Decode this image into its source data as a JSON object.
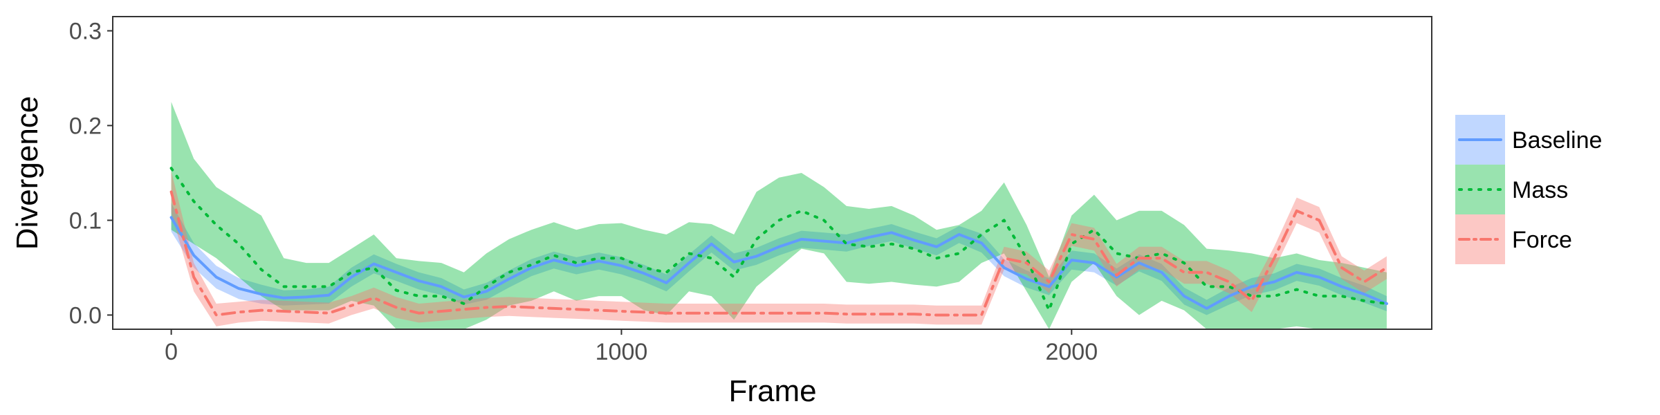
{
  "chart_data": {
    "type": "line",
    "xlabel": "Frame",
    "ylabel": "Divergence",
    "xlim": [
      -130,
      2800
    ],
    "ylim": [
      -0.015,
      0.315
    ],
    "x_ticks": [
      0,
      1000,
      2000
    ],
    "y_ticks": [
      0.0,
      0.1,
      0.2,
      0.3
    ],
    "x_tick_labels": [
      "0",
      "1000",
      "2000"
    ],
    "y_tick_labels": [
      "0.0",
      "0.1",
      "0.2",
      "0.3"
    ],
    "grid": false,
    "legend_position": "right",
    "series": [
      {
        "name": "Baseline",
        "color": "#619cff",
        "line_style": "solid",
        "x": [
          0,
          50,
          100,
          150,
          200,
          250,
          300,
          350,
          400,
          450,
          500,
          550,
          600,
          650,
          700,
          750,
          800,
          850,
          900,
          950,
          1000,
          1050,
          1100,
          1150,
          1200,
          1250,
          1300,
          1350,
          1400,
          1450,
          1500,
          1550,
          1600,
          1650,
          1700,
          1750,
          1800,
          1850,
          1900,
          1950,
          2000,
          2050,
          2100,
          2150,
          2200,
          2250,
          2300,
          2350,
          2400,
          2450,
          2500,
          2550,
          2600,
          2650,
          2700
        ],
        "y": [
          0.103,
          0.063,
          0.04,
          0.028,
          0.022,
          0.018,
          0.019,
          0.021,
          0.04,
          0.054,
          0.045,
          0.036,
          0.03,
          0.019,
          0.025,
          0.038,
          0.05,
          0.058,
          0.052,
          0.057,
          0.052,
          0.044,
          0.034,
          0.055,
          0.075,
          0.056,
          0.062,
          0.072,
          0.08,
          0.078,
          0.076,
          0.082,
          0.087,
          0.079,
          0.072,
          0.085,
          0.076,
          0.05,
          0.038,
          0.03,
          0.058,
          0.055,
          0.04,
          0.055,
          0.045,
          0.02,
          0.007,
          0.02,
          0.03,
          0.035,
          0.045,
          0.04,
          0.03,
          0.022,
          0.012
        ],
        "lower": [
          0.088,
          0.05,
          0.028,
          0.017,
          0.012,
          0.01,
          0.011,
          0.012,
          0.03,
          0.044,
          0.036,
          0.027,
          0.021,
          0.011,
          0.016,
          0.029,
          0.041,
          0.049,
          0.043,
          0.048,
          0.043,
          0.035,
          0.025,
          0.046,
          0.066,
          0.047,
          0.053,
          0.063,
          0.071,
          0.069,
          0.067,
          0.073,
          0.078,
          0.07,
          0.063,
          0.076,
          0.066,
          0.041,
          0.029,
          0.021,
          0.048,
          0.045,
          0.031,
          0.046,
          0.036,
          0.011,
          0.0,
          0.011,
          0.021,
          0.026,
          0.036,
          0.031,
          0.021,
          0.013,
          0.004
        ],
        "upper": [
          0.118,
          0.076,
          0.052,
          0.039,
          0.032,
          0.026,
          0.027,
          0.03,
          0.05,
          0.064,
          0.054,
          0.045,
          0.039,
          0.027,
          0.034,
          0.047,
          0.059,
          0.067,
          0.061,
          0.066,
          0.061,
          0.053,
          0.043,
          0.064,
          0.084,
          0.065,
          0.071,
          0.081,
          0.089,
          0.087,
          0.085,
          0.091,
          0.096,
          0.088,
          0.081,
          0.094,
          0.086,
          0.059,
          0.047,
          0.039,
          0.068,
          0.065,
          0.049,
          0.064,
          0.054,
          0.029,
          0.016,
          0.029,
          0.039,
          0.044,
          0.054,
          0.049,
          0.039,
          0.031,
          0.02
        ]
      },
      {
        "name": "Mass",
        "color": "#00ba38",
        "line_style": "dotted",
        "x": [
          0,
          50,
          100,
          150,
          200,
          250,
          300,
          350,
          400,
          450,
          500,
          550,
          600,
          650,
          700,
          750,
          800,
          850,
          900,
          950,
          1000,
          1050,
          1100,
          1150,
          1200,
          1250,
          1300,
          1350,
          1400,
          1450,
          1500,
          1550,
          1600,
          1650,
          1700,
          1750,
          1800,
          1850,
          1900,
          1950,
          2000,
          2050,
          2100,
          2150,
          2200,
          2250,
          2300,
          2350,
          2400,
          2450,
          2500,
          2550,
          2600,
          2650,
          2700
        ],
        "y": [
          0.155,
          0.12,
          0.095,
          0.075,
          0.048,
          0.03,
          0.03,
          0.03,
          0.045,
          0.05,
          0.026,
          0.02,
          0.02,
          0.012,
          0.03,
          0.045,
          0.053,
          0.063,
          0.055,
          0.06,
          0.06,
          0.05,
          0.045,
          0.065,
          0.06,
          0.04,
          0.08,
          0.1,
          0.11,
          0.1,
          0.075,
          0.072,
          0.075,
          0.07,
          0.06,
          0.065,
          0.085,
          0.1,
          0.06,
          0.005,
          0.075,
          0.09,
          0.065,
          0.06,
          0.065,
          0.055,
          0.03,
          0.03,
          0.02,
          0.02,
          0.027,
          0.02,
          0.02,
          0.015,
          0.012
        ],
        "lower": [
          0.09,
          0.075,
          0.06,
          0.04,
          0.02,
          0.005,
          0.005,
          0.005,
          0.015,
          0.01,
          -0.015,
          -0.02,
          -0.02,
          -0.02,
          -0.005,
          0.01,
          0.015,
          0.025,
          0.015,
          0.02,
          0.02,
          0.005,
          0.0,
          0.025,
          0.02,
          -0.005,
          0.03,
          0.05,
          0.07,
          0.065,
          0.035,
          0.033,
          0.035,
          0.032,
          0.03,
          0.035,
          0.055,
          0.065,
          0.025,
          -0.02,
          0.035,
          0.055,
          0.02,
          0.0,
          0.015,
          0.005,
          -0.02,
          -0.02,
          -0.02,
          -0.015,
          -0.012,
          -0.018,
          -0.02,
          -0.02,
          -0.022
        ],
        "upper": [
          0.225,
          0.165,
          0.135,
          0.12,
          0.105,
          0.06,
          0.055,
          0.055,
          0.07,
          0.085,
          0.06,
          0.057,
          0.055,
          0.045,
          0.065,
          0.08,
          0.09,
          0.098,
          0.09,
          0.096,
          0.097,
          0.09,
          0.085,
          0.098,
          0.096,
          0.085,
          0.13,
          0.145,
          0.15,
          0.135,
          0.115,
          0.112,
          0.115,
          0.105,
          0.09,
          0.095,
          0.11,
          0.14,
          0.095,
          0.04,
          0.105,
          0.127,
          0.1,
          0.11,
          0.11,
          0.095,
          0.07,
          0.068,
          0.065,
          0.06,
          0.065,
          0.058,
          0.055,
          0.05,
          0.045
        ]
      },
      {
        "name": "Force",
        "color": "#f8766d",
        "line_style": "dashdot",
        "x": [
          0,
          50,
          100,
          150,
          200,
          250,
          300,
          350,
          400,
          450,
          500,
          550,
          600,
          650,
          700,
          750,
          800,
          850,
          900,
          950,
          1000,
          1050,
          1100,
          1150,
          1200,
          1250,
          1300,
          1350,
          1400,
          1450,
          1500,
          1550,
          1600,
          1650,
          1700,
          1750,
          1800,
          1850,
          1900,
          1950,
          2000,
          2050,
          2100,
          2150,
          2200,
          2250,
          2300,
          2350,
          2400,
          2450,
          2500,
          2550,
          2600,
          2650,
          2700
        ],
        "y": [
          0.13,
          0.04,
          0.0,
          0.003,
          0.005,
          0.004,
          0.003,
          0.002,
          0.01,
          0.018,
          0.008,
          0.002,
          0.004,
          0.006,
          0.008,
          0.009,
          0.008,
          0.007,
          0.006,
          0.005,
          0.004,
          0.003,
          0.002,
          0.002,
          0.002,
          0.002,
          0.002,
          0.002,
          0.002,
          0.002,
          0.001,
          0.001,
          0.001,
          0.001,
          0.0,
          0.0,
          0.0,
          0.06,
          0.055,
          0.035,
          0.085,
          0.08,
          0.042,
          0.06,
          0.06,
          0.045,
          0.045,
          0.035,
          0.015,
          0.06,
          0.11,
          0.1,
          0.05,
          0.035,
          0.05
        ],
        "lower": [
          0.108,
          0.025,
          -0.012,
          -0.008,
          -0.006,
          -0.007,
          -0.008,
          -0.009,
          0.0,
          0.007,
          -0.003,
          -0.008,
          -0.006,
          -0.004,
          -0.002,
          -0.001,
          -0.002,
          -0.003,
          -0.004,
          -0.005,
          -0.006,
          -0.007,
          -0.008,
          -0.008,
          -0.008,
          -0.008,
          -0.008,
          -0.008,
          -0.008,
          -0.008,
          -0.009,
          -0.009,
          -0.009,
          -0.009,
          -0.01,
          -0.01,
          -0.01,
          0.048,
          0.043,
          0.023,
          0.073,
          0.068,
          0.03,
          0.048,
          0.048,
          0.033,
          0.033,
          0.023,
          0.003,
          0.048,
          0.097,
          0.087,
          0.038,
          0.023,
          0.038
        ],
        "upper": [
          0.152,
          0.055,
          0.012,
          0.014,
          0.016,
          0.015,
          0.014,
          0.013,
          0.02,
          0.029,
          0.019,
          0.012,
          0.014,
          0.016,
          0.018,
          0.019,
          0.018,
          0.017,
          0.016,
          0.015,
          0.014,
          0.013,
          0.012,
          0.012,
          0.012,
          0.012,
          0.012,
          0.012,
          0.012,
          0.012,
          0.011,
          0.011,
          0.011,
          0.011,
          0.01,
          0.01,
          0.01,
          0.072,
          0.067,
          0.047,
          0.097,
          0.092,
          0.054,
          0.072,
          0.072,
          0.057,
          0.057,
          0.047,
          0.027,
          0.072,
          0.124,
          0.114,
          0.062,
          0.047,
          0.062
        ]
      }
    ]
  }
}
